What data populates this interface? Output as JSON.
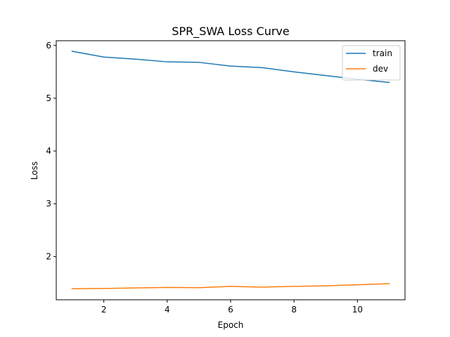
{
  "chart_data": {
    "type": "line",
    "title": "SPR_SWA Loss Curve",
    "xlabel": "Epoch",
    "ylabel": "Loss",
    "xlim": [
      0.5,
      11.5
    ],
    "ylim": [
      1.18,
      6.09
    ],
    "xticks": [
      2,
      4,
      6,
      8,
      10
    ],
    "yticks": [
      2,
      3,
      4,
      5,
      6
    ],
    "grid": false,
    "legend_position": "top-right",
    "x": [
      1,
      2,
      3,
      4,
      5,
      6,
      7,
      8,
      9,
      10,
      11
    ],
    "series": [
      {
        "name": "train",
        "color": "#1f77b4",
        "values": [
          5.89,
          5.78,
          5.74,
          5.69,
          5.68,
          5.61,
          5.58,
          5.5,
          5.43,
          5.36,
          5.3
        ]
      },
      {
        "name": "dev",
        "color": "#ff7f0e",
        "values": [
          1.39,
          1.395,
          1.405,
          1.415,
          1.41,
          1.435,
          1.42,
          1.435,
          1.445,
          1.465,
          1.485
        ]
      }
    ]
  }
}
